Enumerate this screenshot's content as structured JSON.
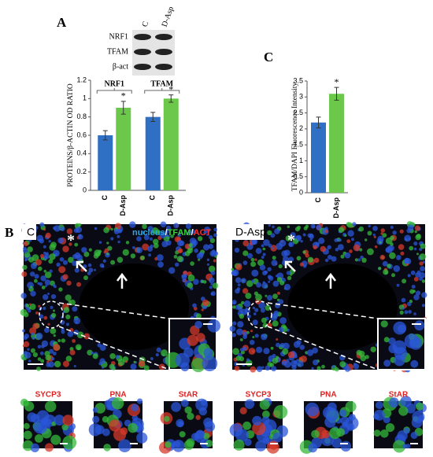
{
  "panels": {
    "a": "A",
    "b": "B",
    "c": "C"
  },
  "blot": {
    "rows": [
      "NRF1",
      "TFAM",
      "β-act"
    ],
    "lanes": [
      "C",
      "D-Asp"
    ]
  },
  "chart_data": [
    {
      "type": "bar",
      "ylabel": "PROTEINS/β-ACTIN OD RATIO",
      "categories": [
        "C",
        "D-Asp"
      ],
      "category_colors": [
        "#2f6fc4",
        "#6cc84a"
      ],
      "series": [
        {
          "name": "NRF1",
          "values": [
            0.6,
            0.9
          ],
          "errors": [
            0.05,
            0.07
          ],
          "significance": {
            "D-Asp": "*"
          }
        },
        {
          "name": "TFAM",
          "values": [
            0.8,
            1.0
          ],
          "errors": [
            0.05,
            0.04
          ],
          "significance": {
            "D-Asp": "*"
          }
        }
      ],
      "ylim": [
        0,
        1.2
      ],
      "yticks": [
        0,
        0.2,
        0.4,
        0.6,
        0.8,
        1,
        1.2
      ]
    },
    {
      "type": "bar",
      "ylabel": "TFAM/DAPI  Fluorescence Intensity",
      "categories": [
        "C",
        "D-Asp"
      ],
      "category_colors": [
        "#2f6fc4",
        "#6cc84a"
      ],
      "series": [
        {
          "values": [
            2.2,
            3.1
          ],
          "errors": [
            0.17,
            0.2
          ],
          "significance": {
            "D-Asp": "*"
          }
        }
      ],
      "ylim": [
        0,
        3.5
      ],
      "yticks": [
        0,
        0.5,
        1,
        1.5,
        2,
        2.5,
        3,
        3.5
      ]
    }
  ],
  "micrographs": [
    {
      "label": "C",
      "marker": "*"
    },
    {
      "label": "D-Asp",
      "marker": "*"
    }
  ],
  "stain_legend": [
    {
      "text": "nucleus",
      "color": "#2aa7e0"
    },
    {
      "text": "/",
      "color": "#ffffff"
    },
    {
      "text": "TFAM",
      "color": "#3ecf3e"
    },
    {
      "text": "/",
      "color": "#ffffff"
    },
    {
      "text": "ACT",
      "color": "#ff2a2a"
    }
  ],
  "insets": [
    "SYCP3",
    "PNA",
    "StAR",
    "SYCP3",
    "PNA",
    "StAR"
  ]
}
